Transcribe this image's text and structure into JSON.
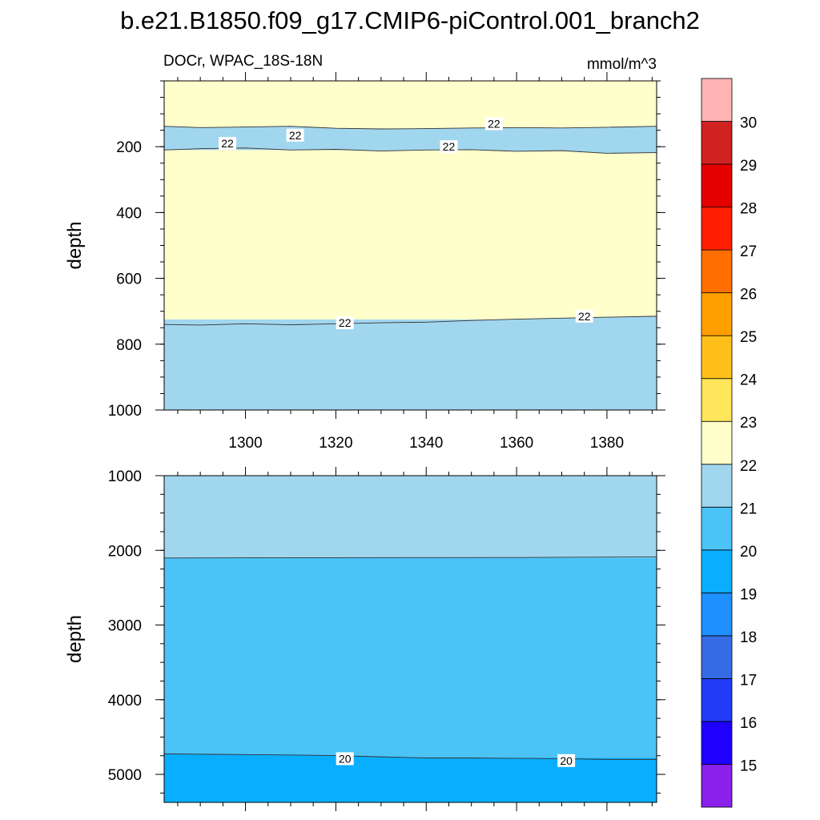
{
  "title": "b.e21.B1850.f09_g17.CMIP6-piControl.001_branch2",
  "chart_data": [
    {
      "type": "contour",
      "panel": "upper",
      "left_string": "DOCr, WPAC_18S-18N",
      "right_string": "mmol/m^3",
      "xlabel": "",
      "ylabel": "depth",
      "xlim": [
        1282,
        1391
      ],
      "ylim": [
        1000,
        0
      ],
      "x_ticks": [
        1300,
        1320,
        1340,
        1360,
        1380
      ],
      "x_tick_labels": [
        "1300",
        "1320",
        "1340",
        "1360",
        "1380"
      ],
      "y_ticks": [
        200,
        400,
        600,
        800,
        1000
      ],
      "y_tick_labels": [
        "200",
        "400",
        "600",
        "800",
        "1000"
      ],
      "regions": [
        {
          "range": "22-23",
          "color": "#ffffcc",
          "depth_from": 0,
          "depth_to": 1000
        },
        {
          "range": "21-22",
          "color": "#a1d6ef",
          "depth_from": 150,
          "depth_to": 210
        },
        {
          "range": "21-22",
          "color": "#a1d6ef",
          "depth_from": 725,
          "depth_to": 1000
        }
      ],
      "contour_lines": [
        {
          "value": 22,
          "x": [
            1282,
            1290,
            1300,
            1310,
            1320,
            1330,
            1340,
            1350,
            1360,
            1370,
            1380,
            1391
          ],
          "depth": [
            138,
            142,
            140,
            138,
            144,
            146,
            145,
            143,
            142,
            143,
            141,
            138
          ]
        },
        {
          "value": 22,
          "x": [
            1282,
            1290,
            1300,
            1310,
            1320,
            1330,
            1340,
            1350,
            1360,
            1370,
            1380,
            1391
          ],
          "depth": [
            210,
            206,
            204,
            210,
            208,
            213,
            210,
            209,
            214,
            212,
            220,
            218
          ]
        },
        {
          "value": 22,
          "x": [
            1282,
            1290,
            1300,
            1310,
            1320,
            1330,
            1340,
            1350,
            1360,
            1370,
            1380,
            1391
          ],
          "depth": [
            740,
            742,
            738,
            741,
            738,
            735,
            733,
            728,
            724,
            721,
            718,
            715
          ]
        }
      ],
      "contour_labels": [
        {
          "text": "22",
          "x": 1296,
          "depth": 190
        },
        {
          "text": "22",
          "x": 1311,
          "depth": 165
        },
        {
          "text": "22",
          "x": 1345,
          "depth": 200
        },
        {
          "text": "22",
          "x": 1355,
          "depth": 130
        },
        {
          "text": "22",
          "x": 1322,
          "depth": 735
        },
        {
          "text": "22",
          "x": 1375,
          "depth": 715
        }
      ]
    },
    {
      "type": "contour",
      "panel": "lower",
      "xlabel": "",
      "ylabel": "depth",
      "xlim": [
        1282,
        1391
      ],
      "ylim": [
        5375,
        1000
      ],
      "y_ticks": [
        1000,
        2000,
        3000,
        4000,
        5000
      ],
      "y_tick_labels": [
        "1000",
        "2000",
        "3000",
        "4000",
        "5000"
      ],
      "regions": [
        {
          "range": "21-22",
          "color": "#a1d6ef",
          "depth_from": 1000,
          "depth_to": 2100
        },
        {
          "range": "20-21",
          "color": "#4bc3f6",
          "depth_from": 2100,
          "depth_to": 4780
        },
        {
          "range": "19-20",
          "color": "#0aaeff",
          "depth_from": 4780,
          "depth_to": 5375
        }
      ],
      "contour_lines": [
        {
          "value": 21,
          "x": [
            1282,
            1300,
            1320,
            1340,
            1360,
            1380,
            1391
          ],
          "depth": [
            2102,
            2100,
            2098,
            2097,
            2096,
            2090,
            2088
          ]
        },
        {
          "value": 20,
          "x": [
            1282,
            1290,
            1300,
            1310,
            1320,
            1330,
            1340,
            1350,
            1360,
            1370,
            1380,
            1391
          ],
          "depth": [
            4725,
            4730,
            4735,
            4740,
            4748,
            4765,
            4780,
            4780,
            4785,
            4790,
            4800,
            4800
          ]
        }
      ],
      "contour_labels": [
        {
          "text": "20",
          "x": 1322,
          "depth": 4790
        },
        {
          "text": "20",
          "x": 1371,
          "depth": 4815
        }
      ]
    }
  ],
  "colorbar": {
    "levels": [
      "15",
      "16",
      "17",
      "18",
      "19",
      "20",
      "21",
      "22",
      "23",
      "24",
      "25",
      "26",
      "27",
      "28",
      "29",
      "30"
    ],
    "colors": [
      "#8a20ec",
      "#1f00ff",
      "#223bf5",
      "#356be4",
      "#1f90ff",
      "#0aaeff",
      "#4bc3f6",
      "#a1d6ef",
      "#ffffcc",
      "#ffe65a",
      "#ffc01a",
      "#ff9f00",
      "#ff6e00",
      "#ff1e00",
      "#e50000",
      "#d12222",
      "#ffb3b3"
    ]
  }
}
